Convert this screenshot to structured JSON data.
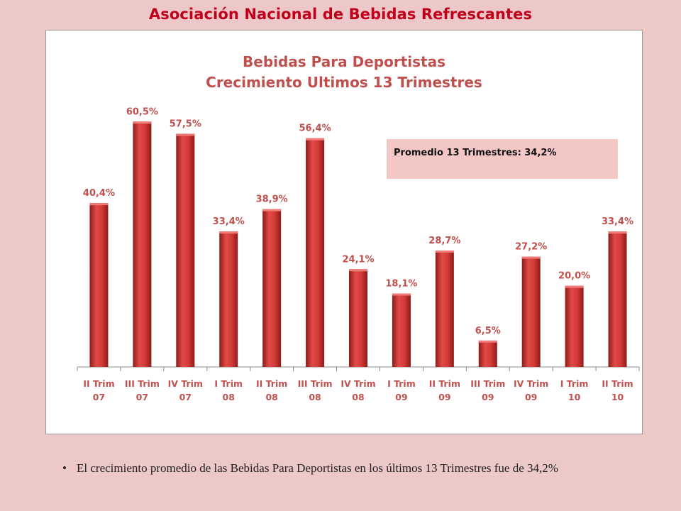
{
  "slide_title": "Asociación Nacional de Bebidas  Refrescantes",
  "chart_title_line1": "Bebidas Para Deportistas",
  "chart_title_line2": "Crecimiento Ultimos 13 Trimestres",
  "average_box_text": "Promedio 13 Trimestres: 34,2%",
  "bullet_text": "El crecimiento promedio de las Bebidas Para Deportistas en los últimos 13 Trimestres fue de 34,2%",
  "colors": {
    "bar": "#c0302e",
    "title": "#c0001a",
    "chart_title": "#c0504d"
  },
  "chart_data": {
    "type": "bar",
    "title": "Bebidas Para Deportistas / Crecimiento Ultimos 13 Trimestres",
    "categories": [
      [
        "II Trim",
        "07"
      ],
      [
        "III Trim",
        "07"
      ],
      [
        "IV Trim",
        "07"
      ],
      [
        "I Trim",
        "08"
      ],
      [
        "II Trim",
        "08"
      ],
      [
        "III Trim",
        "08"
      ],
      [
        "IV Trim",
        "08"
      ],
      [
        "I Trim",
        "09"
      ],
      [
        "II Trim",
        "09"
      ],
      [
        "III Trim",
        "09"
      ],
      [
        "IV Trim",
        "09"
      ],
      [
        "I Trim",
        "10"
      ],
      [
        "II Trim",
        "10"
      ]
    ],
    "values": [
      40.4,
      60.5,
      57.5,
      33.4,
      38.9,
      56.4,
      24.1,
      18.1,
      28.7,
      6.5,
      27.2,
      20.0,
      33.4
    ],
    "labels": [
      "40,4%",
      "60,5%",
      "57,5%",
      "33,4%",
      "38,9%",
      "56,4%",
      "24,1%",
      "18,1%",
      "28,7%",
      "6,5%",
      "27,2%",
      "20,0%",
      "33,4%"
    ],
    "ylim": [
      0,
      70
    ],
    "grid": false,
    "legend": "none"
  }
}
